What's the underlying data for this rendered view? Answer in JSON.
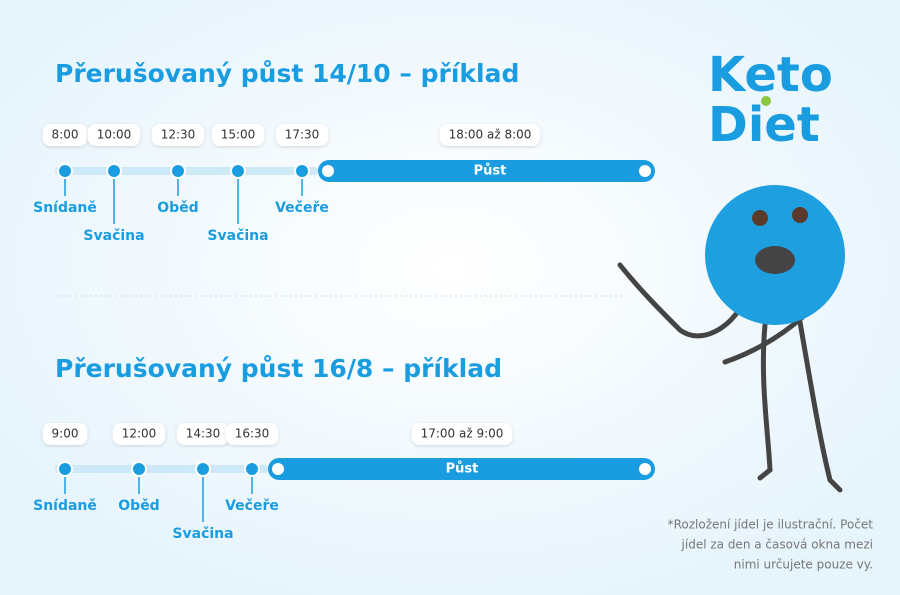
{
  "sections": [
    {
      "title": "Přerušovaný půst 14/10 – příklad",
      "meals": [
        {
          "time": "8:00",
          "label": "Snídaně"
        },
        {
          "time": "10:00",
          "label": "Svačina"
        },
        {
          "time": "12:30",
          "label": "Oběd"
        },
        {
          "time": "15:00",
          "label": "Svačina"
        },
        {
          "time": "17:30",
          "label": "Večeře"
        }
      ],
      "fast": {
        "time": "18:00 až 8:00",
        "label": "Půst"
      }
    },
    {
      "title": "Přerušovaný půst 16/8 – příklad",
      "meals": [
        {
          "time": "9:00",
          "label": "Snídaně"
        },
        {
          "time": "12:00",
          "label": "Oběd"
        },
        {
          "time": "14:30",
          "label": "Svačina"
        },
        {
          "time": "16:30",
          "label": "Večeře"
        }
      ],
      "fast": {
        "time": "17:00 až 9:00",
        "label": "Půst"
      }
    }
  ],
  "logo": {
    "line1": "Keto",
    "line2": "Diet"
  },
  "footnote": [
    "*Rozložení jídel je ilustrační. Počet",
    "jídel za den a časová okna mezi",
    "nimi určujete pouze vy."
  ]
}
